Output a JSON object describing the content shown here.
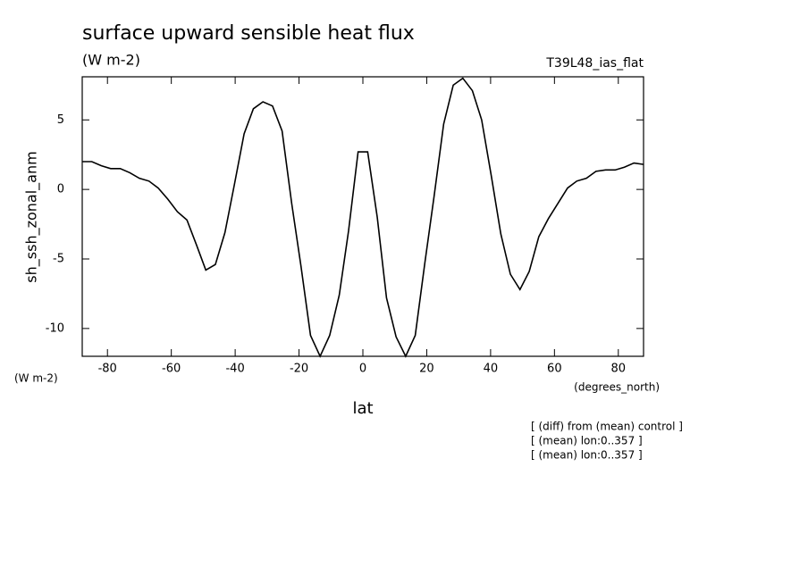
{
  "chart_data": {
    "type": "line",
    "title": "surface upward sensible heat flux",
    "subtitle": "(W m-2)",
    "experiment": "T39L48_ias_flat",
    "y_label": "sh_ssh_zonal_anm",
    "y_units": "(W m-2)",
    "x_units": "(degrees_north)",
    "x_label": "lat",
    "notes": [
      "[ (diff) from (mean) control ]",
      "[ (mean) lon:0..357 ]",
      "[ (mean) lon:0..357 ]"
    ],
    "x": [
      -87.9,
      -84.9,
      -81.9,
      -79.0,
      -76.0,
      -73.0,
      -70.0,
      -67.0,
      -64.1,
      -61.1,
      -58.1,
      -55.1,
      -52.1,
      -49.2,
      -46.2,
      -43.2,
      -40.2,
      -37.2,
      -34.3,
      -31.3,
      -28.3,
      -25.3,
      -22.3,
      -19.4,
      -16.4,
      -13.4,
      -10.4,
      -7.4,
      -4.5,
      -1.5,
      1.5,
      4.5,
      7.4,
      10.4,
      13.4,
      16.4,
      19.4,
      22.3,
      25.3,
      28.3,
      31.3,
      34.3,
      37.2,
      40.2,
      43.2,
      46.2,
      49.2,
      52.1,
      55.1,
      58.1,
      61.1,
      64.1,
      67.0,
      70.0,
      73.0,
      76.0,
      79.0,
      81.9,
      84.9,
      87.9
    ],
    "series": [
      {
        "color": "#000000",
        "values": [
          2.0,
          2.0,
          1.7,
          1.5,
          1.5,
          1.2,
          0.8,
          0.6,
          0.1,
          -0.7,
          -1.6,
          -2.2,
          -4.0,
          -5.8,
          -5.4,
          -3.1,
          0.4,
          4.0,
          5.8,
          6.3,
          6.0,
          4.2,
          -1.0,
          -5.5,
          -10.5,
          -12.0,
          -10.5,
          -7.6,
          -3.0,
          2.7,
          2.7,
          -2.0,
          -7.8,
          -10.6,
          -12.0,
          -10.5,
          -5.3,
          -0.5,
          4.7,
          7.5,
          8.0,
          7.1,
          5.0,
          1.0,
          -3.2,
          -6.1,
          -7.2,
          -5.9,
          -3.4,
          -2.1,
          -1.0,
          0.1,
          0.6,
          0.8,
          1.3,
          1.4,
          1.4,
          1.6,
          1.9,
          1.8
        ]
      }
    ],
    "xlim": [
      -87.9,
      87.9
    ],
    "xticks": [
      -80,
      -60,
      -40,
      -20,
      0,
      20,
      40,
      60,
      80
    ],
    "ylim": [
      -12,
      8.1
    ],
    "yticks": [
      -10,
      -5,
      0,
      5
    ]
  }
}
